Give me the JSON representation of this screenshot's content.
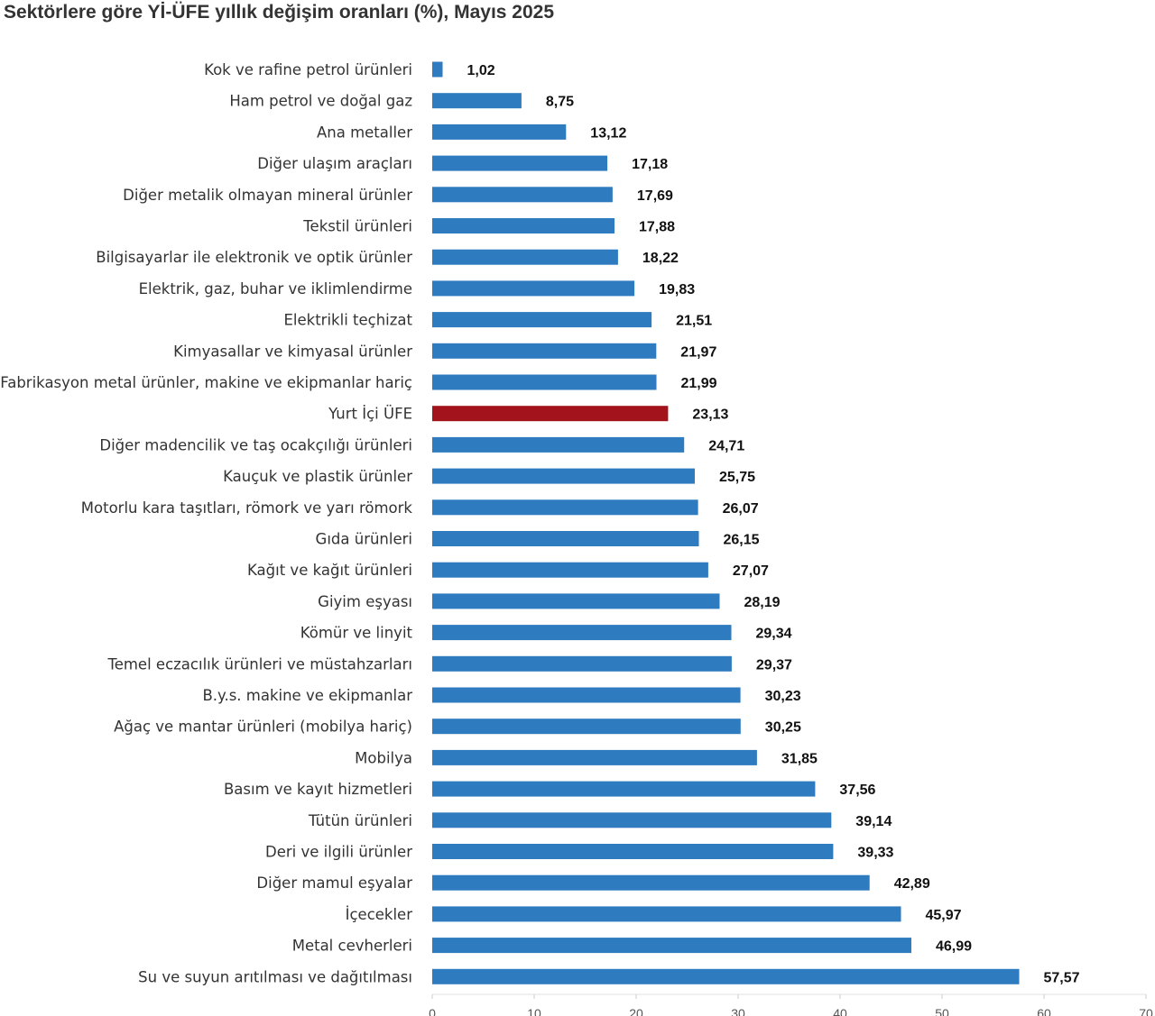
{
  "chart_data": {
    "type": "bar",
    "orientation": "horizontal",
    "title": "Sektörlere göre Yİ-ÜFE yıllık değişim oranları (%), Mayıs 2025",
    "xlabel": "",
    "ylabel": "",
    "xlim": [
      0,
      70
    ],
    "x_ticks": [
      "0",
      "10",
      "20",
      "30",
      "40",
      "50",
      "60",
      "70"
    ],
    "grid": false,
    "legend": "none",
    "bar_color": "#2E7BBF",
    "highlight_color": "#A3131C",
    "highlight_category": "Yurt İçi ÜFE",
    "categories": [
      "Kok ve rafine petrol ürünleri",
      "Ham petrol ve doğal gaz",
      "Ana metaller",
      "Diğer ulaşım araçları",
      "Diğer metalik olmayan mineral ürünler",
      "Tekstil ürünleri",
      "Bilgisayarlar ile elektronik ve optik ürünler",
      "Elektrik, gaz, buhar ve iklimlendirme",
      "Elektrikli teçhizat",
      "Kimyasallar ve kimyasal ürünler",
      "Fabrikasyon metal ürünler, makine ve ekipmanlar hariç",
      "Yurt İçi ÜFE",
      "Diğer madencilik ve taş ocakçılığı ürünleri",
      "Kauçuk ve plastik ürünler",
      "Motorlu kara taşıtları, römork ve yarı römork",
      "Gıda ürünleri",
      "Kağıt ve kağıt ürünleri",
      "Giyim eşyası",
      "Kömür ve linyit",
      "Temel eczacılık ürünleri ve müstahzarları",
      "B.y.s. makine ve ekipmanlar",
      "Ağaç ve mantar ürünleri (mobilya hariç)",
      "Mobilya",
      "Basım ve kayıt hizmetleri",
      "Tütün ürünleri",
      "Deri ve ilgili ürünler",
      "Diğer mamul eşyalar",
      "İçecekler",
      "Metal cevherleri",
      "Su ve suyun arıtılması ve dağıtılması"
    ],
    "values": [
      1.02,
      8.75,
      13.12,
      17.18,
      17.69,
      17.88,
      18.22,
      19.83,
      21.51,
      21.97,
      21.99,
      23.13,
      24.71,
      25.75,
      26.07,
      26.15,
      27.07,
      28.19,
      29.34,
      29.37,
      30.23,
      30.25,
      31.85,
      37.56,
      39.14,
      39.33,
      42.89,
      45.97,
      46.99,
      57.57
    ],
    "value_labels": [
      "1,02",
      "8,75",
      "13,12",
      "17,18",
      "17,69",
      "17,88",
      "18,22",
      "19,83",
      "21,51",
      "21,97",
      "21,99",
      "23,13",
      "24,71",
      "25,75",
      "26,07",
      "26,15",
      "27,07",
      "28,19",
      "29,34",
      "29,37",
      "30,23",
      "30,25",
      "31,85",
      "37,56",
      "39,14",
      "39,33",
      "42,89",
      "45,97",
      "46,99",
      "57,57"
    ]
  }
}
